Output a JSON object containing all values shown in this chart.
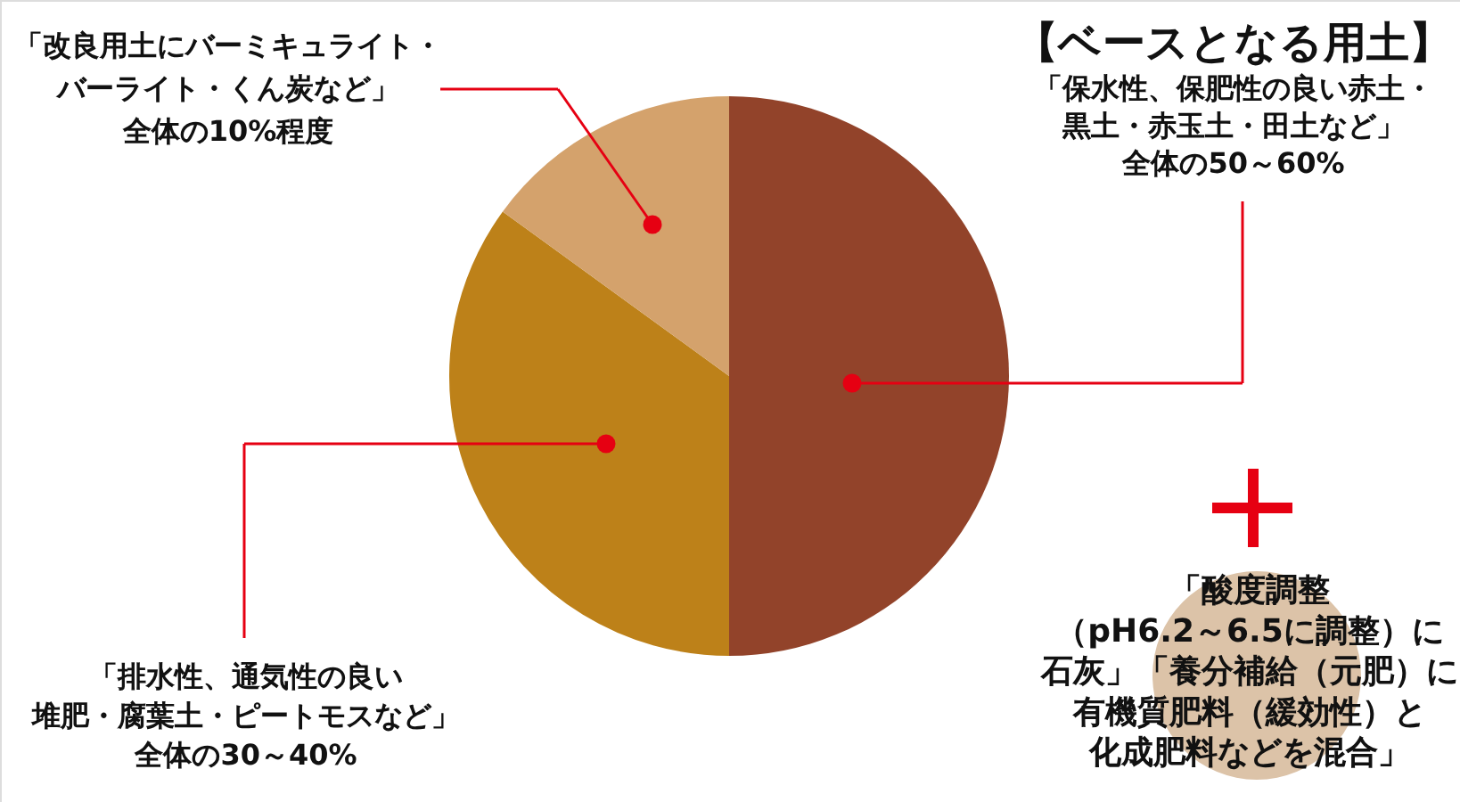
{
  "chart_data": {
    "type": "pie",
    "categories": [
      "「保水性、保肥性の良い赤土・黒土・赤玉土・田土など」全体の50～60%",
      "「排水性、通気性の良い堆肥・腐葉土・ピートモスなど」全体の30～40%",
      "「改良用土にバーミキュライト・バーライト・くん炭など」全体の10%程度"
    ],
    "values": [
      50,
      35,
      15
    ],
    "colors": [
      "#92432a",
      "#bd8119",
      "#d4a26c"
    ],
    "annotations": [
      "【ベースとなる用土】",
      "「酸度調整（pH6.2～6.5に調整）に石灰」「養分補給（元肥）に有機質肥料（緩効性）と化成肥料などを混合」"
    ]
  }
}
